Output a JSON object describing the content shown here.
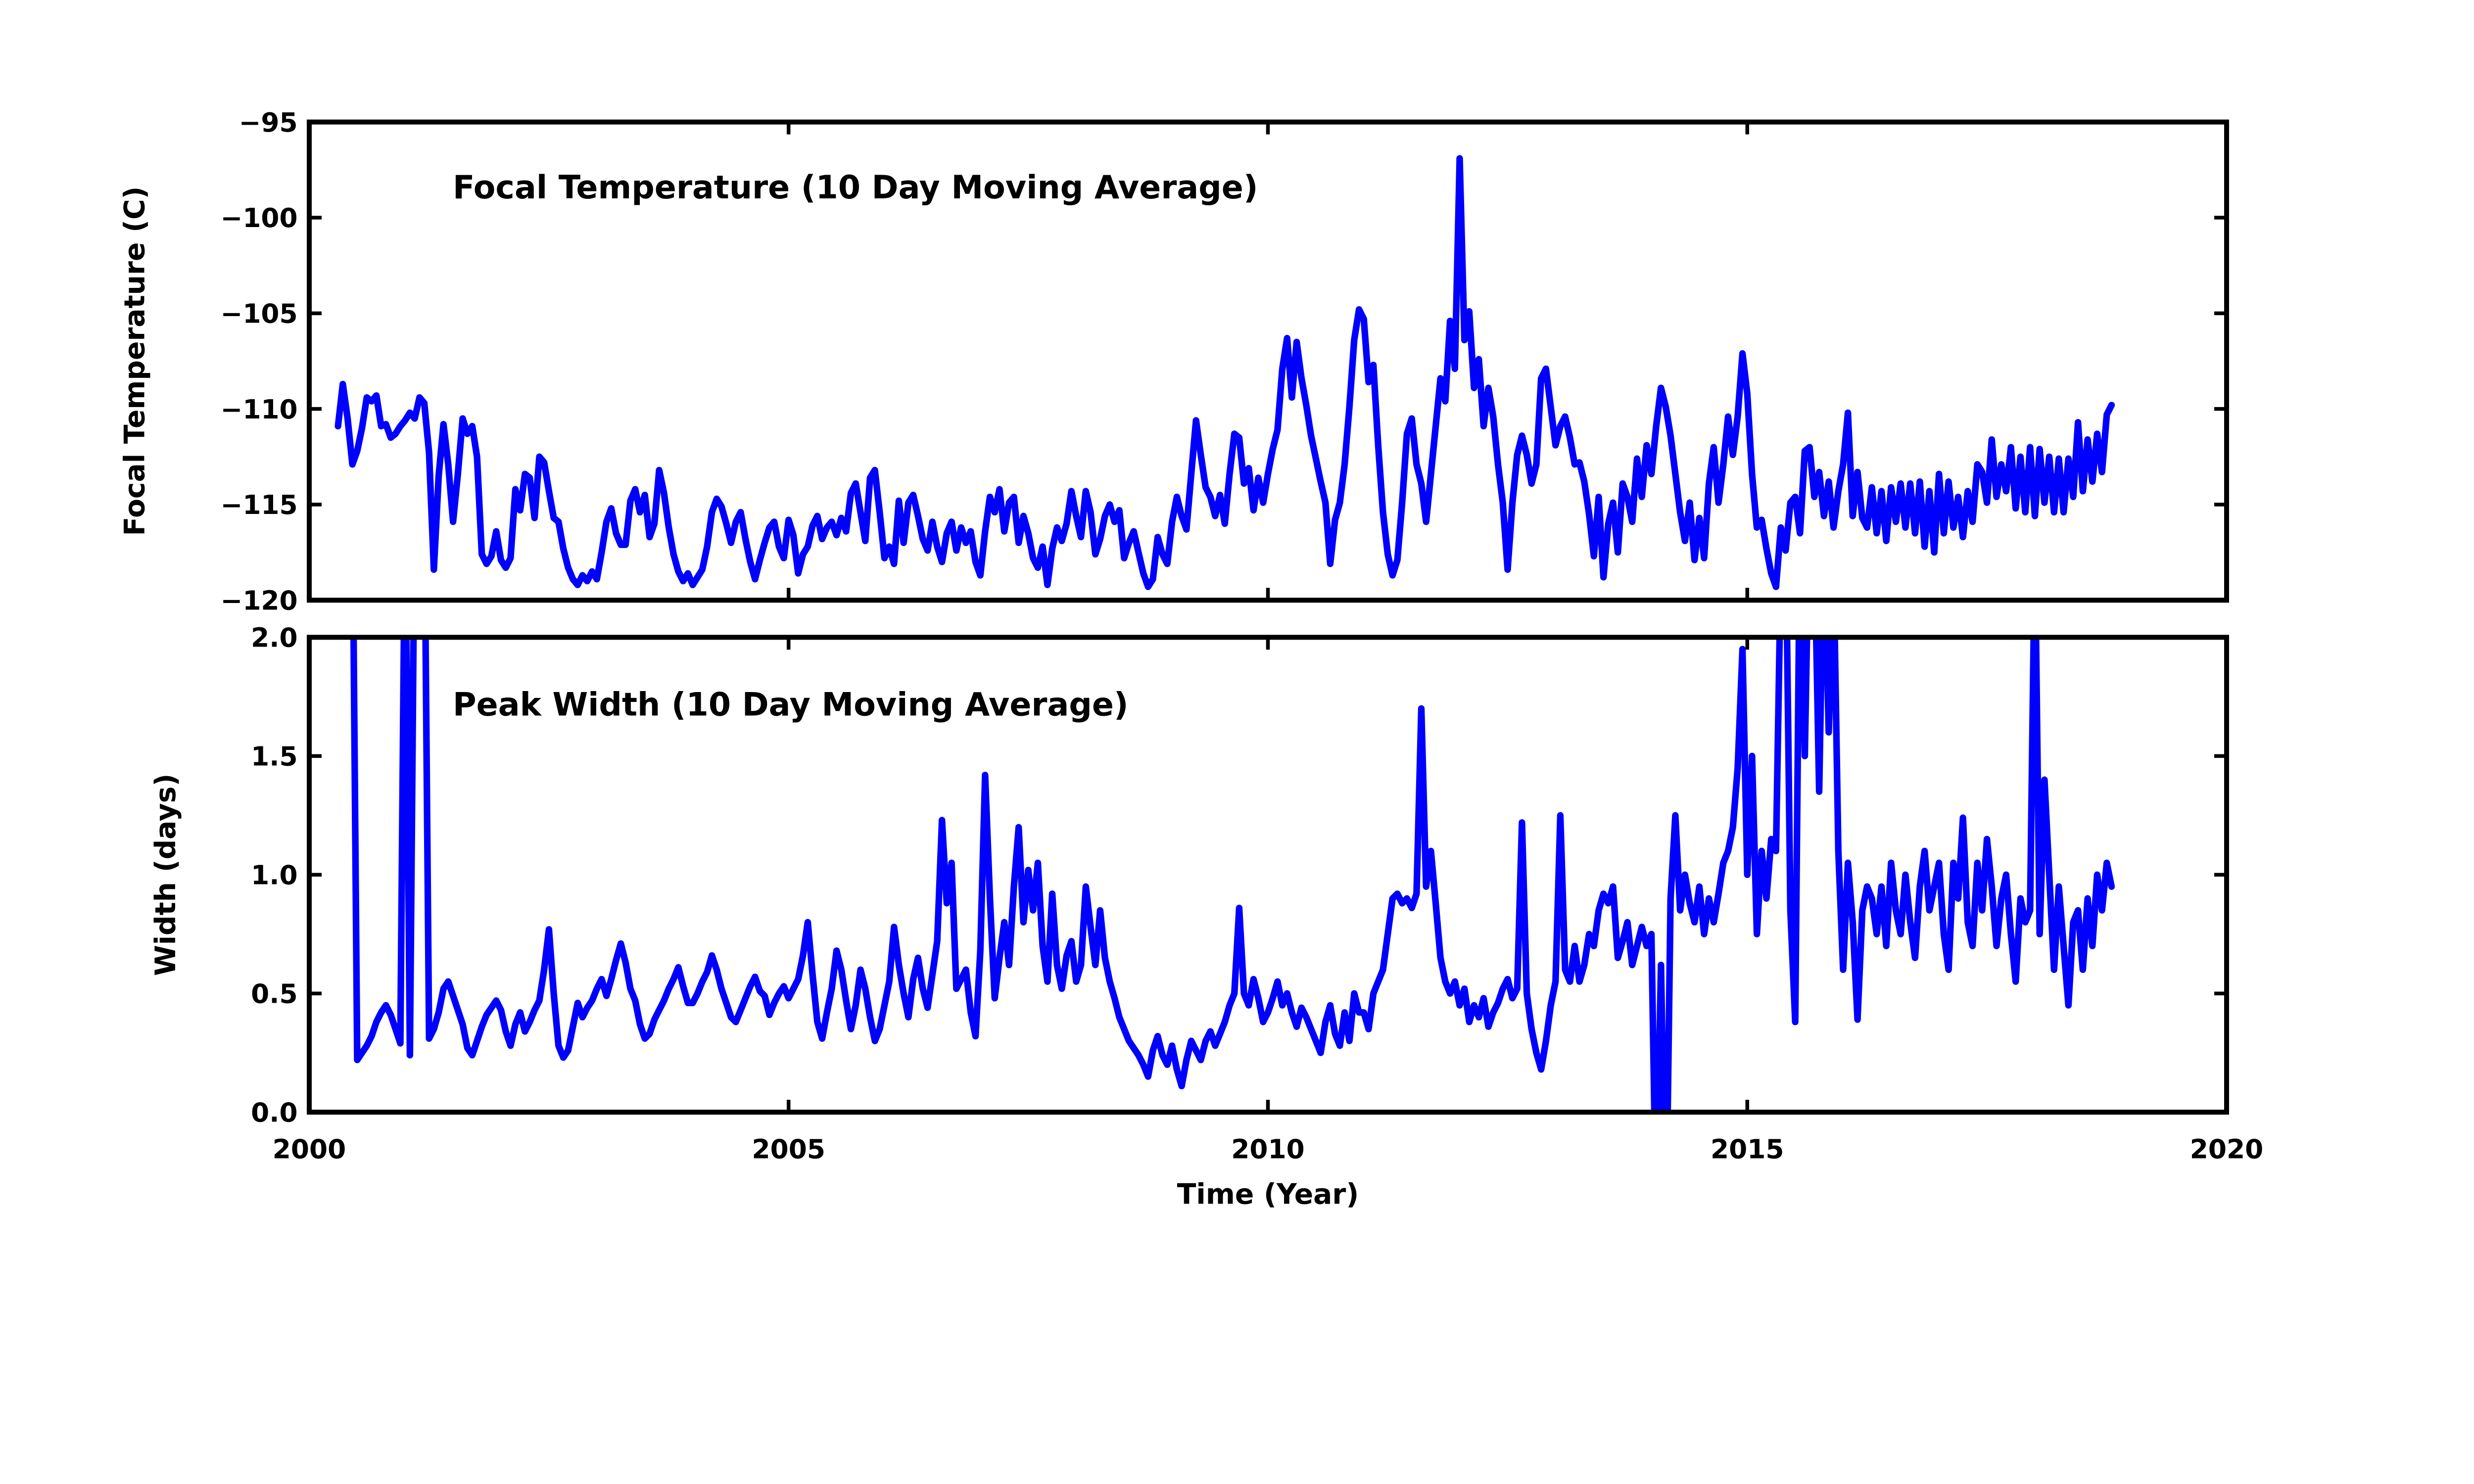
{
  "figure": {
    "background": "#ffffff",
    "line_color": "#0000ff",
    "axis_color": "#000000",
    "text_color": "#000000"
  },
  "x_axis": {
    "label": "Time (Year)",
    "range": [
      2000,
      2020
    ],
    "tick_values": [
      2000,
      2005,
      2010,
      2015,
      2020
    ],
    "tick_labels": [
      "2000",
      "2005",
      "2010",
      "2015",
      "2020"
    ]
  },
  "chart_data": [
    {
      "type": "line",
      "title": "Focal Temperature (10 Day Moving Average)",
      "ylabel": "Focal Temperature (C)",
      "xlabel": "",
      "ylim": [
        -120,
        -95
      ],
      "grid": false,
      "legend": null,
      "y_ticks": [
        {
          "value": -95,
          "label": "−95"
        },
        {
          "value": -100,
          "label": "−100"
        },
        {
          "value": -105,
          "label": "−105"
        },
        {
          "value": -110,
          "label": "−110"
        },
        {
          "value": -115,
          "label": "−115"
        },
        {
          "value": -120,
          "label": "−120"
        }
      ],
      "x_tick_labels_visible": false,
      "series": [
        {
          "name": "focal-temperature",
          "color": "#0000ff",
          "x_start": 2000.3,
          "x_step": 0.05,
          "values": [
            -110.9,
            -108.7,
            -110.5,
            -112.9,
            -112.2,
            -111.0,
            -109.4,
            -109.6,
            -109.3,
            -110.9,
            -110.8,
            -111.5,
            -111.3,
            -110.9,
            -110.6,
            -110.2,
            -110.5,
            -109.4,
            -109.7,
            -112.3,
            -118.4,
            -113.5,
            -110.8,
            -112.9,
            -115.9,
            -113.4,
            -110.5,
            -111.3,
            -110.9,
            -112.5,
            -117.6,
            -118.1,
            -117.7,
            -116.4,
            -117.9,
            -118.3,
            -117.8,
            -114.2,
            -115.3,
            -113.4,
            -113.6,
            -115.7,
            -112.5,
            -112.8,
            -114.3,
            -115.7,
            -115.9,
            -117.3,
            -118.3,
            -118.9,
            -119.2,
            -118.7,
            -119.0,
            -118.5,
            -118.9,
            -117.5,
            -115.9,
            -115.2,
            -116.5,
            -117.1,
            -117.1,
            -114.8,
            -114.2,
            -115.4,
            -114.5,
            -116.7,
            -116.0,
            -113.2,
            -114.4,
            -116.2,
            -117.6,
            -118.5,
            -119.0,
            -118.6,
            -119.2,
            -118.8,
            -118.4,
            -117.2,
            -115.4,
            -114.7,
            -115.1,
            -116.0,
            -117.0,
            -115.9,
            -115.4,
            -116.8,
            -118.0,
            -118.9,
            -117.9,
            -117.0,
            -116.2,
            -115.9,
            -117.2,
            -117.8,
            -115.8,
            -116.6,
            -118.6,
            -117.6,
            -117.2,
            -116.1,
            -115.6,
            -116.8,
            -116.2,
            -115.9,
            -116.6,
            -115.7,
            -116.4,
            -114.4,
            -113.9,
            -115.4,
            -116.9,
            -113.6,
            -113.2,
            -115.4,
            -117.8,
            -117.2,
            -118.1,
            -114.8,
            -117.0,
            -114.9,
            -114.5,
            -115.6,
            -116.8,
            -117.4,
            -115.9,
            -117.2,
            -118.0,
            -116.5,
            -115.9,
            -117.4,
            -116.2,
            -117.0,
            -116.4,
            -118.0,
            -118.7,
            -116.4,
            -114.6,
            -115.4,
            -114.2,
            -116.4,
            -114.9,
            -114.6,
            -117.0,
            -115.6,
            -116.5,
            -117.8,
            -118.3,
            -117.2,
            -119.2,
            -117.3,
            -116.2,
            -116.9,
            -116.0,
            -114.3,
            -115.6,
            -116.7,
            -114.3,
            -115.4,
            -117.6,
            -116.8,
            -115.6,
            -115.0,
            -115.9,
            -115.3,
            -117.8,
            -117.0,
            -116.4,
            -117.5,
            -118.6,
            -119.3,
            -118.9,
            -116.7,
            -117.6,
            -118.1,
            -115.9,
            -114.6,
            -115.6,
            -116.3,
            -113.4,
            -110.6,
            -112.4,
            -114.1,
            -114.6,
            -115.6,
            -114.5,
            -116.0,
            -113.4,
            -111.3,
            -111.5,
            -113.9,
            -113.1,
            -115.3,
            -113.6,
            -114.9,
            -113.4,
            -112.1,
            -111.1,
            -107.9,
            -106.3,
            -109.4,
            -106.5,
            -108.4,
            -109.8,
            -111.4,
            -112.6,
            -113.8,
            -114.9,
            -118.1,
            -115.8,
            -114.9,
            -112.9,
            -109.9,
            -106.4,
            -104.8,
            -105.3,
            -108.6,
            -107.7,
            -111.9,
            -115.4,
            -117.6,
            -118.7,
            -117.9,
            -114.9,
            -111.3,
            -110.5,
            -112.9,
            -113.9,
            -115.9,
            -113.4,
            -110.9,
            -108.4,
            -109.6,
            -105.4,
            -107.9,
            -96.9,
            -106.4,
            -104.9,
            -108.9,
            -107.4,
            -110.9,
            -108.9,
            -110.4,
            -112.9,
            -114.9,
            -118.4,
            -114.9,
            -112.4,
            -111.4,
            -112.4,
            -113.9,
            -112.9,
            -108.4,
            -107.9,
            -109.9,
            -111.9,
            -110.9,
            -110.4,
            -111.5,
            -112.9,
            -112.8,
            -113.8,
            -115.5,
            -117.7,
            -114.6,
            -118.8,
            -116.0,
            -114.9,
            -117.5,
            -113.9,
            -114.6,
            -115.9,
            -112.6,
            -114.6,
            -111.9,
            -113.4,
            -110.9,
            -108.9,
            -109.9,
            -111.4,
            -113.4,
            -115.4,
            -116.9,
            -114.9,
            -117.9,
            -115.7,
            -117.8,
            -113.9,
            -112.0,
            -114.9,
            -112.9,
            -110.4,
            -112.4,
            -110.4,
            -107.1,
            -109.2,
            -113.4,
            -116.2,
            -115.8,
            -117.3,
            -118.6,
            -119.3,
            -116.2,
            -117.4,
            -114.9,
            -114.6,
            -116.5,
            -112.2,
            -112.0,
            -114.6,
            -113.3,
            -115.6,
            -113.8,
            -116.2,
            -114.3,
            -112.9,
            -110.2,
            -115.6,
            -113.3,
            -115.7,
            -116.2,
            -114.1,
            -116.5,
            -114.3,
            -116.9,
            -114.1,
            -115.9,
            -113.9,
            -116.2,
            -113.9,
            -116.5,
            -113.8,
            -117.2,
            -114.3,
            -117.5,
            -113.4,
            -116.5,
            -113.8,
            -116.2,
            -114.6,
            -116.7,
            -114.3,
            -115.9,
            -112.9,
            -113.3,
            -114.9,
            -111.6,
            -114.6,
            -112.9,
            -114.3,
            -112.0,
            -115.2,
            -112.5,
            -115.4,
            -112.0,
            -115.6,
            -112.1,
            -114.9,
            -112.5,
            -115.4,
            -112.6,
            -115.4,
            -112.6,
            -114.6,
            -110.7,
            -114.3,
            -111.6,
            -113.8,
            -111.3,
            -113.3,
            -110.3,
            -109.8
          ]
        }
      ]
    },
    {
      "type": "line",
      "title": "Peak Width (10 Day Moving Average)",
      "ylabel": "Width (days)",
      "xlabel": "Time (Year)",
      "ylim": [
        0.0,
        2.0
      ],
      "grid": false,
      "legend": null,
      "y_ticks": [
        {
          "value": 0.0,
          "label": "0.0"
        },
        {
          "value": 0.5,
          "label": "0.5"
        },
        {
          "value": 1.0,
          "label": "1.0"
        },
        {
          "value": 1.5,
          "label": "1.5"
        },
        {
          "value": 2.0,
          "label": "2.0"
        }
      ],
      "x_tick_labels_visible": true,
      "series": [
        {
          "name": "peak-width",
          "color": "#0000ff",
          "x_start": 2000.45,
          "x_step": 0.05,
          "values": [
            2.6,
            0.22,
            0.25,
            0.28,
            0.32,
            0.38,
            0.42,
            0.45,
            0.41,
            0.35,
            0.29,
            2.6,
            0.24,
            2.6,
            2.7,
            2.6,
            0.31,
            0.35,
            0.42,
            0.52,
            0.55,
            0.49,
            0.43,
            0.37,
            0.27,
            0.24,
            0.3,
            0.36,
            0.41,
            0.44,
            0.47,
            0.43,
            0.34,
            0.28,
            0.37,
            0.42,
            0.34,
            0.38,
            0.43,
            0.47,
            0.6,
            0.77,
            0.5,
            0.28,
            0.23,
            0.26,
            0.36,
            0.46,
            0.4,
            0.44,
            0.47,
            0.52,
            0.56,
            0.49,
            0.56,
            0.64,
            0.71,
            0.63,
            0.52,
            0.47,
            0.37,
            0.31,
            0.33,
            0.39,
            0.43,
            0.47,
            0.52,
            0.56,
            0.61,
            0.53,
            0.46,
            0.46,
            0.5,
            0.55,
            0.59,
            0.66,
            0.6,
            0.52,
            0.46,
            0.4,
            0.38,
            0.43,
            0.48,
            0.53,
            0.57,
            0.51,
            0.49,
            0.41,
            0.46,
            0.5,
            0.53,
            0.48,
            0.52,
            0.56,
            0.66,
            0.8,
            0.58,
            0.38,
            0.31,
            0.42,
            0.52,
            0.68,
            0.6,
            0.47,
            0.35,
            0.45,
            0.6,
            0.52,
            0.4,
            0.3,
            0.35,
            0.45,
            0.55,
            0.78,
            0.62,
            0.5,
            0.4,
            0.56,
            0.65,
            0.52,
            0.44,
            0.58,
            0.72,
            1.23,
            0.88,
            1.05,
            0.52,
            0.56,
            0.6,
            0.42,
            0.32,
            0.68,
            1.42,
            0.9,
            0.48,
            0.65,
            0.8,
            0.62,
            0.95,
            1.2,
            0.8,
            1.02,
            0.85,
            1.05,
            0.7,
            0.55,
            0.92,
            0.62,
            0.52,
            0.66,
            0.72,
            0.55,
            0.62,
            0.95,
            0.78,
            0.62,
            0.85,
            0.65,
            0.55,
            0.48,
            0.4,
            0.35,
            0.3,
            0.27,
            0.24,
            0.2,
            0.15,
            0.26,
            0.32,
            0.24,
            0.2,
            0.28,
            0.18,
            0.11,
            0.22,
            0.3,
            0.26,
            0.22,
            0.3,
            0.34,
            0.28,
            0.33,
            0.38,
            0.45,
            0.5,
            0.86,
            0.5,
            0.45,
            0.56,
            0.48,
            0.38,
            0.42,
            0.48,
            0.55,
            0.45,
            0.5,
            0.42,
            0.36,
            0.44,
            0.4,
            0.35,
            0.3,
            0.25,
            0.38,
            0.45,
            0.33,
            0.28,
            0.42,
            0.3,
            0.5,
            0.42,
            0.42,
            0.35,
            0.5,
            0.55,
            0.6,
            0.75,
            0.9,
            0.92,
            0.88,
            0.9,
            0.86,
            0.92,
            1.7,
            0.95,
            1.1,
            0.88,
            0.65,
            0.55,
            0.5,
            0.55,
            0.45,
            0.52,
            0.38,
            0.45,
            0.4,
            0.48,
            0.36,
            0.42,
            0.46,
            0.52,
            0.56,
            0.48,
            0.52,
            1.22,
            0.5,
            0.35,
            0.25,
            0.18,
            0.3,
            0.45,
            0.55,
            1.25,
            0.6,
            0.55,
            0.7,
            0.55,
            0.62,
            0.75,
            0.7,
            0.85,
            0.92,
            0.88,
            0.95,
            0.65,
            0.72,
            0.8,
            0.62,
            0.7,
            0.78,
            0.7,
            0.75,
            -0.45,
            0.62,
            -0.6,
            0.9,
            1.25,
            0.85,
            1.0,
            0.88,
            0.8,
            0.95,
            0.75,
            0.9,
            0.8,
            0.92,
            1.05,
            1.1,
            1.2,
            1.45,
            1.95,
            1.0,
            1.5,
            0.75,
            1.1,
            0.9,
            1.15,
            1.1,
            2.3,
            2.5,
            0.85,
            0.38,
            2.5,
            1.5,
            2.6,
            2.4,
            1.35,
            2.5,
            1.6,
            2.3,
            1.1,
            0.6,
            1.05,
            0.8,
            0.39,
            0.85,
            0.95,
            0.9,
            0.75,
            0.95,
            0.7,
            1.05,
            0.85,
            0.75,
            1.0,
            0.8,
            0.65,
            0.95,
            1.1,
            0.85,
            0.95,
            1.05,
            0.75,
            0.6,
            1.05,
            0.9,
            1.24,
            0.8,
            0.7,
            1.05,
            0.85,
            1.15,
            0.95,
            0.7,
            0.9,
            1.0,
            0.75,
            0.55,
            0.9,
            0.8,
            0.85,
            2.4,
            0.75,
            1.4,
            1.0,
            0.6,
            0.95,
            0.7,
            0.45,
            0.8,
            0.85,
            0.6,
            0.9,
            0.7,
            1.0,
            0.85,
            1.05,
            0.95
          ]
        }
      ]
    }
  ]
}
